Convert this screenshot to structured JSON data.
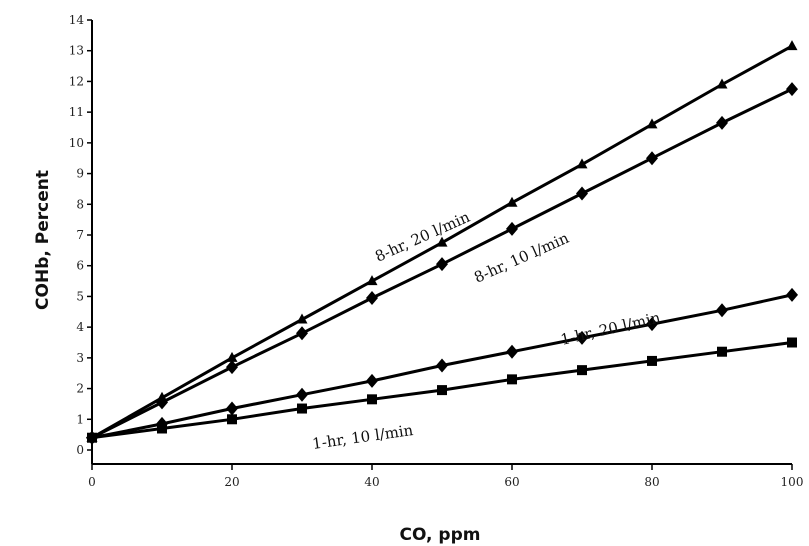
{
  "chart_data": {
    "type": "line",
    "xlabel": "CO, ppm",
    "ylabel": "COHb, Percent",
    "xlim": [
      0,
      100
    ],
    "ylim": [
      0,
      14
    ],
    "x_ticks": [
      "0",
      "20",
      "40",
      "60",
      "80",
      "100"
    ],
    "y_ticks": [
      "0",
      "1",
      "2",
      "3",
      "4",
      "5",
      "6",
      "7",
      "8",
      "9",
      "10",
      "11",
      "12",
      "13",
      "14"
    ],
    "grid": false,
    "legend": "none",
    "x": [
      0,
      10,
      20,
      30,
      40,
      50,
      60,
      70,
      80,
      90,
      100
    ],
    "series": [
      {
        "name": "8-hr, 20 l/min",
        "marker": "triangle",
        "values": [
          0.4,
          1.7,
          3.0,
          4.25,
          5.5,
          6.75,
          8.05,
          9.3,
          10.6,
          11.9,
          13.15
        ]
      },
      {
        "name": "8-hr, 10 l/min",
        "marker": "diamond",
        "values": [
          0.4,
          1.55,
          2.7,
          3.8,
          4.95,
          6.05,
          7.2,
          8.35,
          9.5,
          10.65,
          11.75
        ]
      },
      {
        "name": "1-hr, 20 l/min",
        "marker": "diamond",
        "values": [
          0.4,
          0.85,
          1.35,
          1.8,
          2.25,
          2.75,
          3.2,
          3.65,
          4.1,
          4.55,
          5.05
        ]
      },
      {
        "name": "1-hr, 10 l/min",
        "marker": "square",
        "values": [
          0.4,
          0.7,
          1.0,
          1.35,
          1.65,
          1.95,
          2.3,
          2.6,
          2.9,
          3.2,
          3.5
        ]
      }
    ]
  }
}
